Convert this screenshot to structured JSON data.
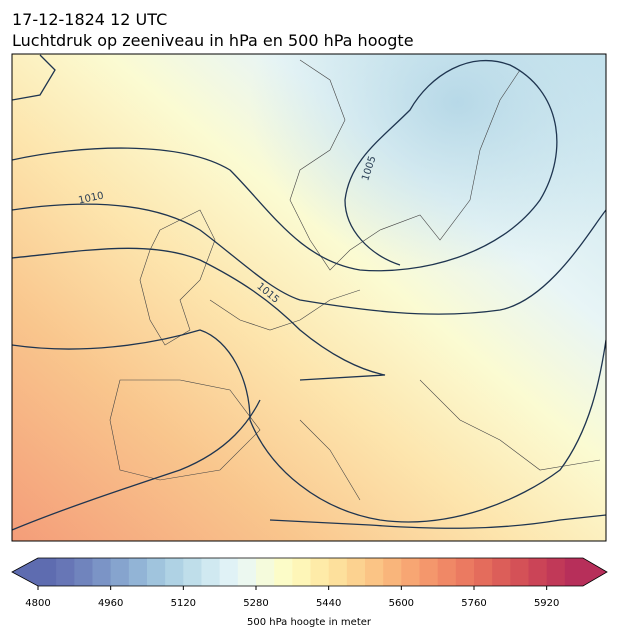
{
  "title": {
    "line1": "17-12-1824 12 UTC",
    "line2": "Luchtdruk op zeeniveau in hPa en 500 hPa hoogte"
  },
  "map": {
    "contour_labels": [
      "1010",
      "1005",
      "1015"
    ]
  },
  "colorbar": {
    "label": "500 hPa hoogte in meter",
    "lim": [
      4800,
      6000
    ],
    "ticks": [
      4800,
      4960,
      5120,
      5280,
      5440,
      5600,
      5760,
      5920
    ],
    "colors": [
      "#5e6cb0",
      "#6776b6",
      "#7084bd",
      "#7b94c6",
      "#86a4ce",
      "#92b4d6",
      "#a0c4dd",
      "#afd2e4",
      "#bfdeea",
      "#d0e9f1",
      "#e0f2f6",
      "#ecf8f0",
      "#f5fbdc",
      "#fcfcc8",
      "#fef6b8",
      "#feeba8",
      "#fde09c",
      "#fcd290",
      "#fbc485",
      "#f9b57b",
      "#f7a673",
      "#f4976c",
      "#f08866",
      "#eb7a61",
      "#e46c5c",
      "#dc5e59",
      "#d45157",
      "#cb4457",
      "#c13958",
      "#b72f5a"
    ]
  }
}
